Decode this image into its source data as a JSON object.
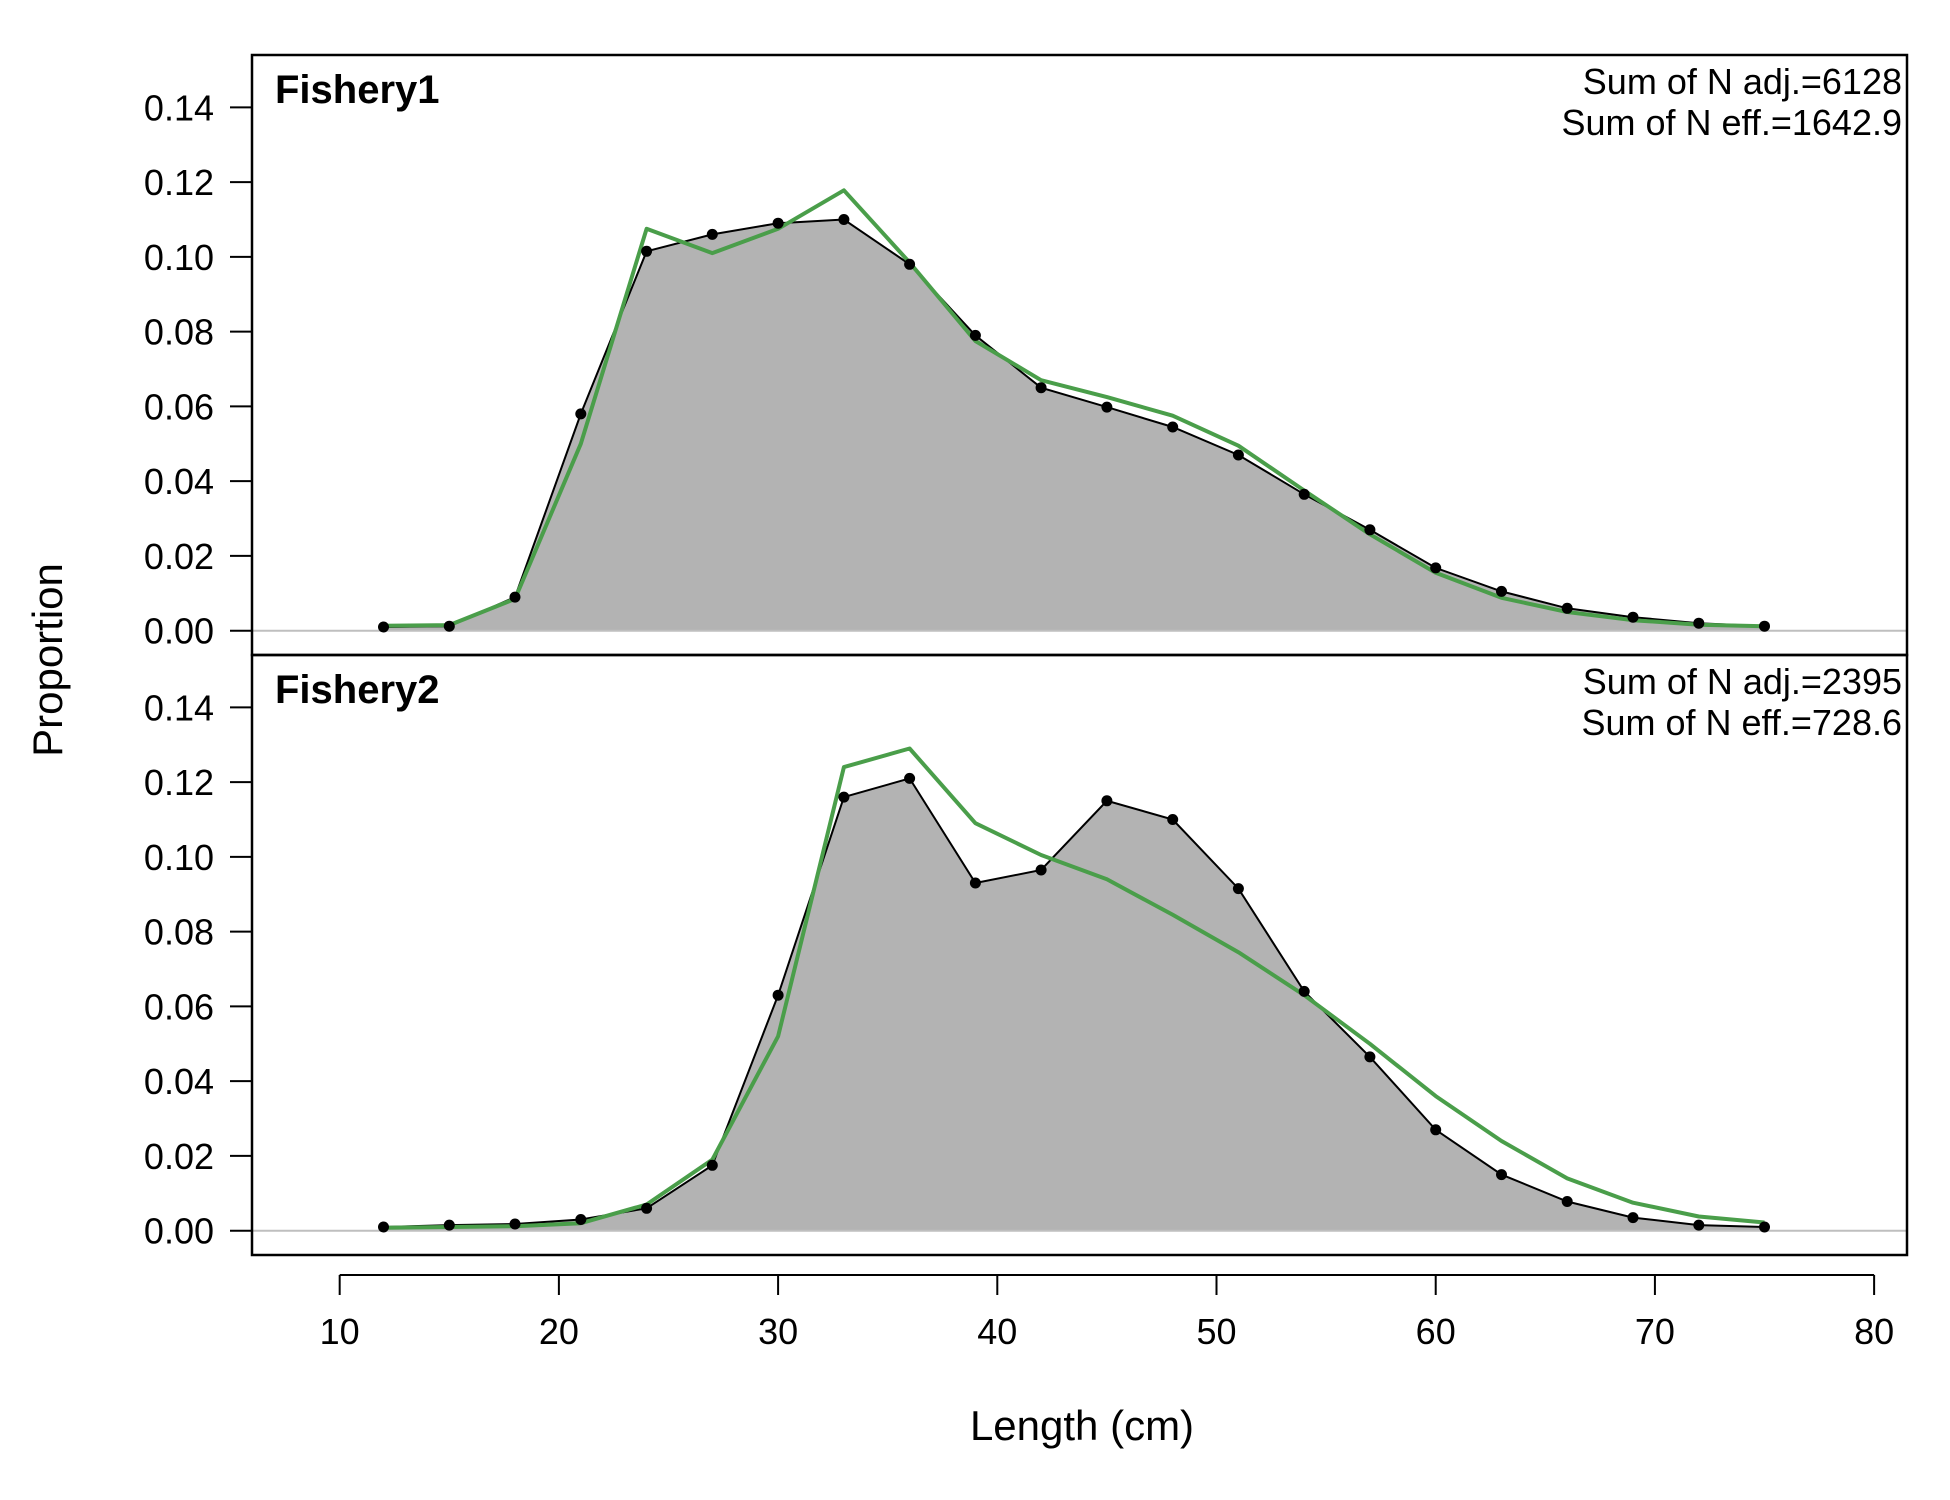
{
  "chart_data": {
    "type": "area",
    "xlabel": "Length (cm)",
    "ylabel": "Proportion",
    "xlim": [
      6,
      81.5
    ],
    "ylim": [
      -0.0065,
      0.154
    ],
    "x_ticks": [
      "10",
      "20",
      "30",
      "40",
      "50",
      "60",
      "70",
      "80"
    ],
    "y_ticks": [
      "0.00",
      "0.02",
      "0.04",
      "0.06",
      "0.08",
      "0.10",
      "0.12",
      "0.14"
    ],
    "grid": false,
    "colors": {
      "observed_fill": "#b3b3b3",
      "observed_line": "#000000",
      "expected_line": "#4a9e4a",
      "zero_line": "#bfbfbf"
    },
    "x": [
      12,
      15,
      18,
      21,
      24,
      27,
      30,
      33,
      36,
      39,
      42,
      45,
      48,
      51,
      54,
      57,
      60,
      63,
      66,
      69,
      72,
      75
    ],
    "panels": [
      {
        "title": "Fishery1",
        "annotations": [
          "Sum of N adj.=6128",
          "Sum of N eff.=1642.9"
        ],
        "series": [
          {
            "role": "observed",
            "values": [
              0.001,
              0.0012,
              0.009,
              0.058,
              0.1015,
              0.106,
              0.109,
              0.11,
              0.098,
              0.079,
              0.065,
              0.0598,
              0.0545,
              0.047,
              0.0365,
              0.027,
              0.0168,
              0.0105,
              0.006,
              0.0036,
              0.002,
              0.0012
            ]
          },
          {
            "role": "expected",
            "values": [
              0.0013,
              0.0015,
              0.0085,
              0.05,
              0.1075,
              0.101,
              0.1075,
              0.1178,
              0.0985,
              0.0775,
              0.067,
              0.0625,
              0.0575,
              0.0495,
              0.0375,
              0.0258,
              0.0155,
              0.0088,
              0.005,
              0.0028,
              0.0016,
              0.0012
            ]
          }
        ]
      },
      {
        "title": "Fishery2",
        "annotations": [
          "Sum of N adj.=2395",
          "Sum of N eff.=728.6"
        ],
        "series": [
          {
            "role": "observed",
            "values": [
              0.001,
              0.0015,
              0.0018,
              0.003,
              0.006,
              0.0175,
              0.063,
              0.116,
              0.121,
              0.093,
              0.0965,
              0.115,
              0.11,
              0.0915,
              0.064,
              0.0465,
              0.027,
              0.015,
              0.0078,
              0.0035,
              0.0015,
              0.001
            ]
          },
          {
            "role": "expected",
            "values": [
              0.0008,
              0.001,
              0.0012,
              0.002,
              0.007,
              0.019,
              0.052,
              0.124,
              0.129,
              0.109,
              0.1005,
              0.094,
              0.0845,
              0.0745,
              0.063,
              0.05,
              0.036,
              0.024,
              0.014,
              0.0075,
              0.0038,
              0.0022
            ]
          }
        ]
      }
    ]
  }
}
